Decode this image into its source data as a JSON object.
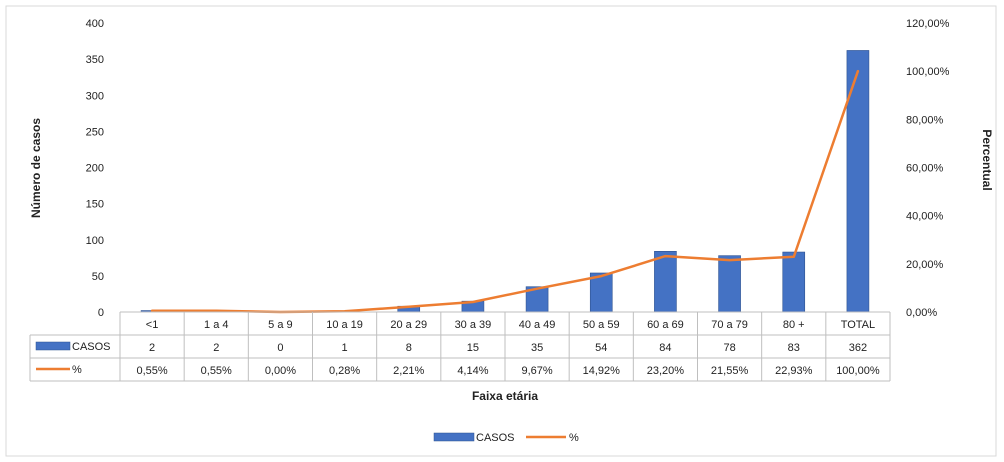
{
  "chart_data": {
    "type": "bar",
    "categories": [
      "<1",
      "1 a 4",
      "5 a 9",
      "10 a 19",
      "20 a 29",
      "30 a 39",
      "40 a 49",
      "50 a 59",
      "60 a 69",
      "70 a 79",
      "80 +",
      "TOTAL"
    ],
    "series": [
      {
        "name": "CASOS",
        "type": "bar",
        "axis": "left",
        "color": "#4472C4",
        "values": [
          2,
          2,
          0,
          1,
          8,
          15,
          35,
          54,
          84,
          78,
          83,
          362
        ],
        "labels": [
          "2",
          "2",
          "0",
          "1",
          "8",
          "15",
          "35",
          "54",
          "84",
          "78",
          "83",
          "362"
        ]
      },
      {
        "name": "%",
        "type": "line",
        "axis": "right",
        "color": "#ED7D31",
        "values": [
          0.55,
          0.55,
          0.0,
          0.28,
          2.21,
          4.14,
          9.67,
          14.92,
          23.2,
          21.55,
          22.93,
          100.0
        ],
        "labels": [
          "0,55%",
          "0,55%",
          "0,00%",
          "0,28%",
          "2,21%",
          "4,14%",
          "9,67%",
          "14,92%",
          "23,20%",
          "21,55%",
          "22,93%",
          "100,00%"
        ]
      }
    ],
    "xlabel": "Faixa etária",
    "ylabel": "Número de casos",
    "y2label": "Percentual",
    "ylim": [
      0,
      400
    ],
    "y2lim": [
      0,
      120
    ],
    "yticks": [
      0,
      50,
      100,
      150,
      200,
      250,
      300,
      350,
      400
    ],
    "y2ticks": [
      0,
      20,
      40,
      60,
      80,
      100,
      120
    ],
    "ytick_labels": [
      "0",
      "50",
      "100",
      "150",
      "200",
      "250",
      "300",
      "350",
      "400"
    ],
    "y2tick_labels": [
      "0,00%",
      "20,00%",
      "40,00%",
      "60,00%",
      "80,00%",
      "100,00%",
      "120,00%"
    ],
    "grid": false,
    "legend": "bottom-center",
    "data_table": true
  }
}
